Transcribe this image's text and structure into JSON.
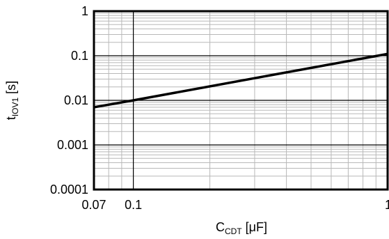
{
  "chart_data": {
    "type": "line",
    "xscale": "log",
    "yscale": "log",
    "xlim": [
      0.07,
      1
    ],
    "ylim": [
      0.0001,
      1
    ],
    "x_ticks": [
      {
        "value": 0.07,
        "label": "0.07"
      },
      {
        "value": 0.1,
        "label": "0.1"
      },
      {
        "value": 1,
        "label": "1"
      }
    ],
    "y_ticks": [
      {
        "value": 0.0001,
        "label": "0.0001"
      },
      {
        "value": 0.001,
        "label": "0.001"
      },
      {
        "value": 0.01,
        "label": "0.01"
      },
      {
        "value": 0.1,
        "label": "0.1"
      },
      {
        "value": 1,
        "label": "1"
      }
    ],
    "xlabel": {
      "main": "C",
      "sub": "CDT",
      "unit": " [μF]"
    },
    "ylabel": {
      "main": "t",
      "sub": "IOV1",
      "unit": " [s]"
    },
    "grid": true,
    "series": [
      {
        "x": [
          0.07,
          0.1,
          1
        ],
        "y": [
          0.007,
          0.01,
          0.11
        ],
        "color": "#000000"
      }
    ]
  }
}
